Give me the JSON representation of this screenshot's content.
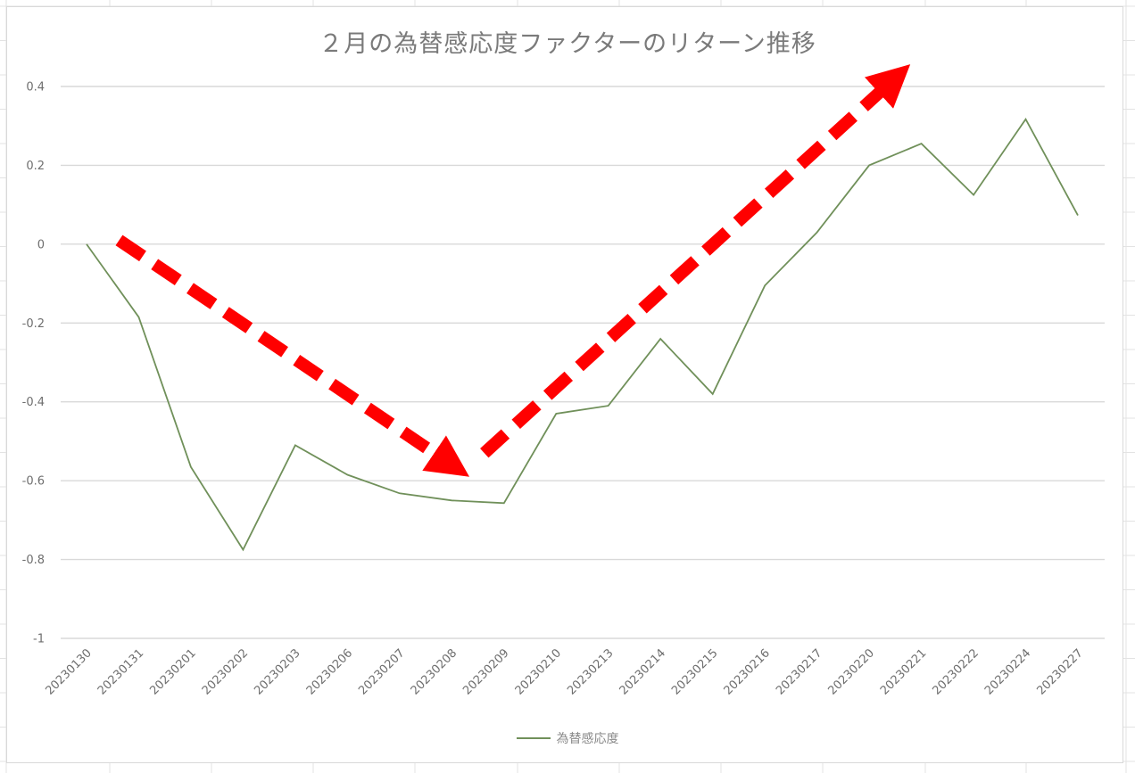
{
  "chart_data": {
    "type": "line",
    "title": "２月の為替感応度ファクターのリターン推移",
    "xlabel": "",
    "ylabel": "",
    "categories": [
      "20230130",
      "20230131",
      "20230201",
      "20230202",
      "20230203",
      "20230206",
      "20230207",
      "20230208",
      "20230209",
      "20230210",
      "20230213",
      "20230214",
      "20230215",
      "20230216",
      "20230217",
      "20230220",
      "20230221",
      "20230222",
      "20230224",
      "20230227"
    ],
    "series": [
      {
        "name": "為替感応度",
        "color": "#70905A",
        "values": [
          0.0,
          -0.185,
          -0.565,
          -0.775,
          -0.51,
          -0.585,
          -0.632,
          -0.65,
          -0.657,
          -0.43,
          -0.41,
          -0.24,
          -0.38,
          -0.105,
          0.03,
          0.2,
          0.255,
          0.125,
          0.317,
          0.073
        ]
      }
    ],
    "ylim": [
      -1,
      0.4
    ],
    "yticks": [
      0.4,
      0.2,
      0,
      -0.2,
      -0.4,
      -0.6,
      -0.8,
      -1
    ],
    "ytick_labels": [
      "0.4",
      "0.2",
      "0",
      "-0.2",
      "-0.4",
      "-0.6",
      "-0.8",
      "-1"
    ],
    "grid": true,
    "legend_position": "bottom",
    "annotations": [
      {
        "type": "dashed-arrow",
        "direction": "down",
        "color": "#FF0000",
        "from_category": "20230131",
        "to_category": "20230208",
        "from_value": 0.01,
        "to_value": -0.56
      },
      {
        "type": "dashed-arrow",
        "direction": "up",
        "color": "#FF0000",
        "from_category": "20230209",
        "to_category": "20230221",
        "from_value": -0.53,
        "to_value": 0.42
      }
    ]
  },
  "legend": {
    "items": [
      {
        "label": "為替感応度",
        "color": "#70905A"
      }
    ]
  },
  "colors": {
    "line": "#70905A",
    "gridline": "#d9d9d9",
    "arrow": "#FF0000",
    "axis_text": "#6e6e6e",
    "title_text": "#7a7a7a"
  }
}
